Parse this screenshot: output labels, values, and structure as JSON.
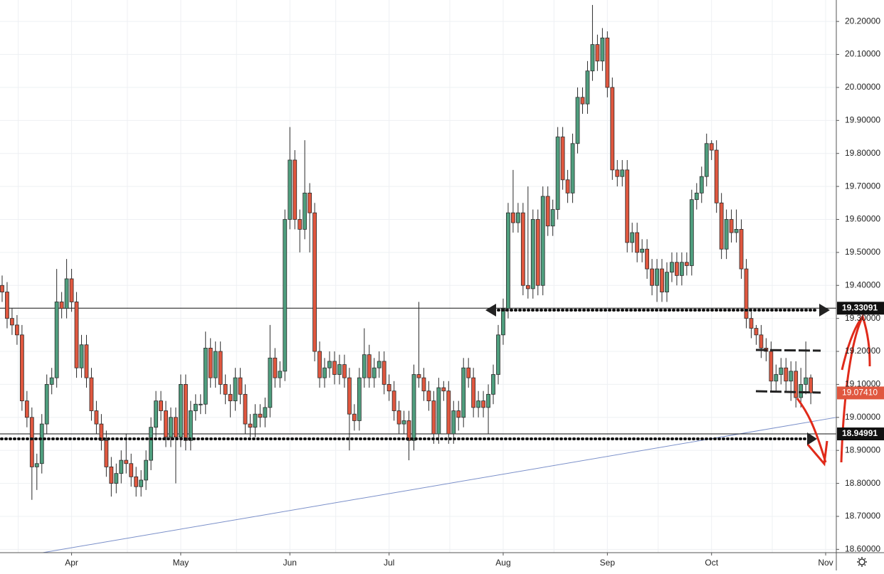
{
  "chart_data": {
    "type": "candlestick",
    "up_color": "#4f9e7e",
    "down_color": "#e0573f",
    "border_color": "#2b2b2b",
    "ylim": [
      18.59,
      20.265
    ],
    "yticks": [
      {
        "value": 18.6,
        "label": "18.60000"
      },
      {
        "value": 18.7,
        "label": "18.70000"
      },
      {
        "value": 18.8,
        "label": "18.80000"
      },
      {
        "value": 18.9,
        "label": "18.90000"
      },
      {
        "value": 19.0,
        "label": "19.00000"
      },
      {
        "value": 19.1,
        "label": "19.10000"
      },
      {
        "value": 19.2,
        "label": "19.20000"
      },
      {
        "value": 19.3,
        "label": "19.30000"
      },
      {
        "value": 19.4,
        "label": "19.40000"
      },
      {
        "value": 19.5,
        "label": "19.50000"
      },
      {
        "value": 19.6,
        "label": "19.60000"
      },
      {
        "value": 19.7,
        "label": "19.70000"
      },
      {
        "value": 19.8,
        "label": "19.80000"
      },
      {
        "value": 19.9,
        "label": "19.90000"
      },
      {
        "value": 20.0,
        "label": "20.00000"
      },
      {
        "value": 20.1,
        "label": "20.10000"
      },
      {
        "value": 20.2,
        "label": "20.20000"
      }
    ],
    "xticks": [
      {
        "value": 14,
        "label": "Apr"
      },
      {
        "value": 36,
        "label": "May"
      },
      {
        "value": 58,
        "label": "Jun"
      },
      {
        "value": 78,
        "label": "Jul"
      },
      {
        "value": 101,
        "label": "Aug"
      },
      {
        "value": 122,
        "label": "Sep"
      },
      {
        "value": 143,
        "label": "Oct"
      },
      {
        "value": 166,
        "label": "Nov"
      }
    ],
    "grid": true,
    "levels": [
      {
        "value": 19.33091,
        "label": "19.33091"
      },
      {
        "value": 18.94991,
        "label": "18.94991"
      }
    ],
    "last_price": {
      "value": 19.0741,
      "label": "19.07410"
    },
    "trendline": {
      "start": 18.59,
      "end": 19.0
    },
    "ohlc": {
      "open": [
        19.4,
        19.38,
        19.3,
        19.28,
        19.25,
        19.05,
        19.0,
        18.85,
        18.86,
        18.98,
        19.1,
        19.12,
        19.35,
        19.33,
        19.42,
        19.35,
        19.15,
        19.22,
        19.12,
        19.02,
        18.98,
        18.93,
        18.85,
        18.8,
        18.83,
        18.87,
        18.86,
        18.82,
        18.79,
        18.81,
        18.87,
        18.97,
        19.05,
        19.02,
        18.94,
        19.0,
        18.94,
        19.1,
        18.93,
        19.02,
        19.04,
        19.04,
        19.21,
        19.12,
        19.2,
        19.1,
        19.07,
        19.05,
        19.12,
        19.07,
        18.98,
        18.97,
        19.01,
        19.0,
        19.03,
        19.18,
        19.12,
        19.14,
        19.6,
        19.78,
        19.6,
        19.57,
        19.68,
        19.62,
        19.2,
        19.12,
        19.15,
        19.17,
        19.13,
        19.16,
        19.12,
        19.01,
        18.99,
        19.12,
        19.19,
        19.12,
        19.15,
        19.17,
        19.1,
        19.08,
        19.02,
        18.98,
        18.99,
        18.93,
        19.13,
        19.12,
        19.08,
        19.05,
        18.95,
        19.09,
        19.08,
        18.95,
        19.02,
        19.0,
        19.15,
        19.12,
        19.03,
        19.05,
        19.03,
        19.07,
        19.13,
        19.25,
        19.33,
        19.62,
        19.59,
        19.62,
        19.4,
        19.39,
        19.6,
        19.4,
        19.67,
        19.58,
        19.63,
        19.85,
        19.72,
        19.68,
        19.83,
        19.97,
        19.95,
        20.05,
        20.13,
        20.08,
        20.15,
        20.0,
        19.75,
        19.73,
        19.75,
        19.53,
        19.56,
        19.5,
        19.51,
        19.45,
        19.4,
        19.45,
        19.38,
        19.44,
        19.47,
        19.43,
        19.47,
        19.46,
        19.66,
        19.68,
        19.73,
        19.83,
        19.81,
        19.65,
        19.51,
        19.6,
        19.56,
        19.57,
        19.45,
        19.3,
        19.27,
        19.25,
        19.21,
        19.2,
        19.11,
        19.13,
        19.15,
        19.11,
        19.14,
        19.06,
        19.1,
        19.12
      ],
      "high": [
        19.43,
        19.41,
        19.33,
        19.31,
        19.28,
        19.08,
        19.03,
        18.89,
        19.01,
        19.13,
        19.15,
        19.45,
        19.38,
        19.48,
        19.45,
        19.38,
        19.25,
        19.25,
        19.15,
        19.05,
        19.01,
        18.96,
        18.88,
        18.86,
        18.9,
        18.95,
        18.89,
        18.85,
        18.84,
        18.9,
        19.0,
        19.08,
        19.08,
        19.05,
        19.03,
        19.03,
        19.13,
        19.13,
        19.05,
        19.07,
        19.07,
        19.26,
        19.24,
        19.23,
        19.23,
        19.13,
        19.1,
        19.15,
        19.15,
        19.1,
        19.01,
        19.04,
        19.04,
        19.06,
        19.28,
        19.21,
        19.17,
        19.63,
        19.88,
        19.81,
        19.63,
        19.84,
        19.71,
        19.65,
        19.23,
        19.18,
        19.2,
        19.2,
        19.19,
        19.19,
        19.15,
        19.04,
        19.15,
        19.27,
        19.22,
        19.18,
        19.2,
        19.2,
        19.13,
        19.11,
        19.05,
        19.02,
        19.02,
        19.16,
        19.35,
        19.15,
        19.11,
        19.08,
        19.12,
        19.11,
        19.11,
        19.05,
        19.05,
        19.18,
        19.18,
        19.15,
        19.08,
        19.08,
        19.1,
        19.16,
        19.28,
        19.36,
        19.65,
        19.75,
        19.65,
        19.65,
        19.7,
        19.63,
        19.63,
        19.7,
        19.7,
        19.66,
        19.88,
        19.88,
        19.75,
        19.86,
        20.0,
        20.0,
        20.08,
        20.25,
        20.16,
        20.18,
        20.17,
        20.03,
        19.78,
        19.78,
        19.78,
        19.59,
        19.59,
        19.54,
        19.54,
        19.48,
        19.48,
        19.48,
        19.47,
        19.5,
        19.5,
        19.5,
        19.5,
        19.69,
        19.71,
        19.76,
        19.86,
        19.84,
        19.84,
        19.68,
        19.63,
        19.63,
        19.63,
        19.6,
        19.48,
        19.33,
        19.28,
        19.28,
        19.24,
        19.23,
        19.16,
        19.18,
        19.18,
        19.17,
        19.17,
        19.15,
        19.23,
        19.13
      ],
      "low": [
        19.35,
        19.27,
        19.25,
        19.22,
        19.02,
        18.97,
        18.75,
        18.78,
        18.83,
        18.95,
        19.07,
        19.09,
        19.3,
        19.3,
        19.32,
        19.12,
        19.12,
        19.09,
        18.99,
        18.95,
        18.9,
        18.82,
        18.76,
        18.77,
        18.8,
        18.83,
        18.79,
        18.76,
        18.76,
        18.78,
        18.84,
        18.94,
        18.99,
        18.91,
        18.91,
        18.8,
        18.91,
        18.9,
        18.9,
        18.99,
        19.01,
        19.01,
        19.09,
        19.09,
        19.07,
        19.04,
        19.0,
        19.02,
        19.04,
        18.95,
        18.94,
        18.94,
        18.97,
        18.97,
        19.0,
        19.09,
        19.09,
        19.11,
        19.57,
        19.57,
        19.5,
        19.54,
        19.5,
        19.17,
        19.09,
        19.09,
        19.12,
        19.1,
        19.1,
        19.09,
        18.9,
        18.96,
        18.96,
        19.09,
        19.09,
        19.09,
        19.12,
        19.07,
        19.05,
        18.99,
        18.95,
        18.95,
        18.87,
        18.9,
        19.09,
        19.05,
        19.02,
        18.92,
        18.92,
        19.05,
        18.92,
        18.92,
        18.96,
        18.97,
        19.09,
        19.0,
        19.0,
        19.0,
        18.95,
        19.04,
        19.1,
        19.22,
        19.3,
        19.56,
        19.56,
        19.37,
        19.36,
        19.36,
        19.37,
        19.37,
        19.55,
        19.55,
        19.6,
        19.69,
        19.65,
        19.65,
        19.8,
        19.92,
        19.92,
        20.02,
        20.05,
        20.05,
        19.97,
        19.72,
        19.7,
        19.7,
        19.5,
        19.5,
        19.47,
        19.47,
        19.42,
        19.37,
        19.35,
        19.35,
        19.35,
        19.41,
        19.4,
        19.4,
        19.43,
        19.43,
        19.63,
        19.65,
        19.7,
        19.78,
        19.62,
        19.48,
        19.48,
        19.53,
        19.53,
        19.42,
        19.27,
        19.24,
        19.22,
        19.18,
        19.17,
        19.08,
        19.08,
        19.1,
        19.08,
        19.05,
        19.03,
        19.03,
        19.07,
        19.04
      ],
      "close": [
        19.38,
        19.3,
        19.28,
        19.25,
        19.05,
        19.0,
        18.85,
        18.86,
        18.98,
        19.1,
        19.12,
        19.35,
        19.33,
        19.42,
        19.35,
        19.15,
        19.22,
        19.12,
        19.02,
        18.98,
        18.93,
        18.85,
        18.8,
        18.83,
        18.87,
        18.86,
        18.82,
        18.79,
        18.81,
        18.87,
        18.97,
        19.05,
        19.02,
        18.94,
        19.0,
        18.94,
        19.1,
        18.93,
        19.02,
        19.04,
        19.04,
        19.21,
        19.12,
        19.2,
        19.1,
        19.07,
        19.05,
        19.12,
        19.07,
        18.98,
        18.97,
        19.01,
        19.0,
        19.03,
        19.18,
        19.12,
        19.14,
        19.6,
        19.78,
        19.6,
        19.57,
        19.68,
        19.62,
        19.2,
        19.12,
        19.15,
        19.17,
        19.13,
        19.16,
        19.12,
        19.01,
        18.99,
        19.12,
        19.19,
        19.12,
        19.15,
        19.17,
        19.1,
        19.08,
        19.02,
        18.98,
        18.99,
        18.93,
        19.13,
        19.12,
        19.08,
        19.05,
        18.95,
        19.09,
        19.08,
        18.95,
        19.02,
        19.0,
        19.15,
        19.12,
        19.03,
        19.05,
        19.03,
        19.07,
        19.13,
        19.25,
        19.33,
        19.62,
        19.59,
        19.62,
        19.4,
        19.39,
        19.6,
        19.4,
        19.67,
        19.58,
        19.63,
        19.85,
        19.72,
        19.68,
        19.83,
        19.97,
        19.95,
        20.05,
        20.13,
        20.08,
        20.15,
        20.0,
        19.75,
        19.73,
        19.75,
        19.53,
        19.56,
        19.5,
        19.51,
        19.45,
        19.4,
        19.45,
        19.38,
        19.44,
        19.47,
        19.43,
        19.47,
        19.46,
        19.66,
        19.68,
        19.73,
        19.83,
        19.81,
        19.65,
        19.51,
        19.6,
        19.56,
        19.57,
        19.45,
        19.3,
        19.27,
        19.25,
        19.21,
        19.2,
        19.11,
        19.13,
        19.15,
        19.11,
        19.14,
        19.06,
        19.1,
        19.12,
        19.0741
      ]
    }
  }
}
